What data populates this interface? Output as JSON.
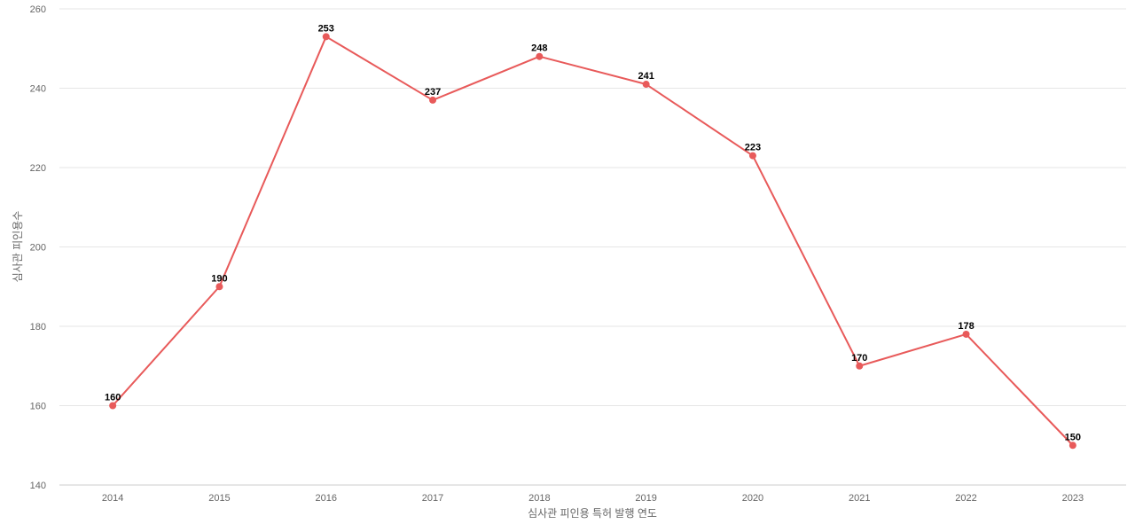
{
  "chart_data": {
    "type": "line",
    "title": "",
    "xlabel": "심사관 피인용 특허 발행 연도",
    "ylabel": "심사관 피인용수",
    "categories": [
      "2014",
      "2015",
      "2016",
      "2017",
      "2018",
      "2019",
      "2020",
      "2021",
      "2022",
      "2023"
    ],
    "series": [
      {
        "values": [
          160,
          190,
          253,
          237,
          248,
          241,
          223,
          170,
          178,
          150
        ],
        "color": "#e85a5a"
      }
    ],
    "ylim": [
      140,
      260
    ],
    "yticks": [
      140,
      160,
      180,
      200,
      220,
      240,
      260
    ],
    "grid": true,
    "legend": "none",
    "data_labels": true
  }
}
